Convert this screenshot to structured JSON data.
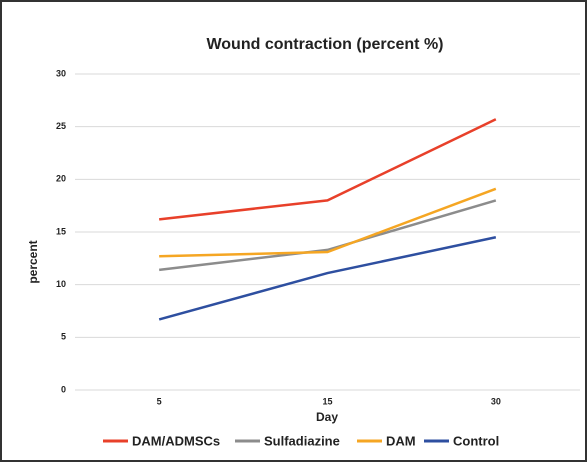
{
  "chart_data": {
    "type": "line",
    "title": "Wound contraction (percent %)",
    "x_label": "Day",
    "y_label": "percent",
    "categories": [
      "5",
      "15",
      "30"
    ],
    "series": [
      {
        "name": "DAM/ADMSCs",
        "color": "#e8402a",
        "values": [
          16.2,
          18,
          25.7
        ]
      },
      {
        "name": "Sulfadiazine",
        "color": "#8c8c8c",
        "values": [
          11.4,
          13.3,
          18
        ]
      },
      {
        "name": "DAM",
        "color": "#f5a623",
        "values": [
          12.7,
          13.1,
          19.1
        ]
      },
      {
        "name": "Control",
        "color": "#2e4fa0",
        "values": [
          6.7,
          11.1,
          14.5
        ]
      }
    ],
    "ylim": [
      0,
      30
    ],
    "yticks": [
      0,
      5,
      10,
      15,
      20,
      25,
      30
    ],
    "grid": true,
    "legend": "bottom"
  }
}
